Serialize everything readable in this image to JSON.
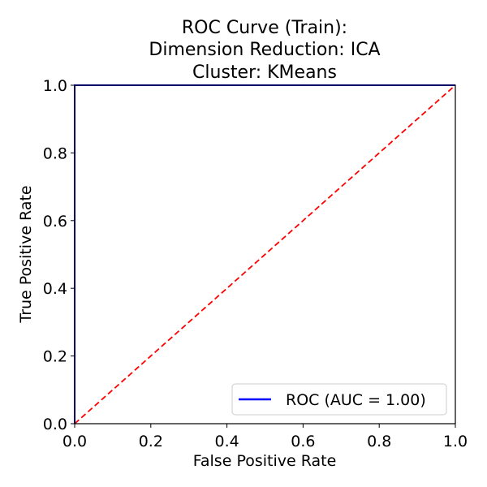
{
  "chart_data": {
    "type": "line",
    "title": [
      "ROC Curve (Train):",
      "Dimension Reduction: ICA",
      "Cluster: KMeans"
    ],
    "xlabel": "False Positive Rate",
    "ylabel": "True Positive Rate",
    "xlim": [
      0.0,
      1.0
    ],
    "ylim": [
      0.0,
      1.0
    ],
    "xticks": [
      "0.0",
      "0.2",
      "0.4",
      "0.6",
      "0.8",
      "1.0"
    ],
    "yticks": [
      "0.0",
      "0.2",
      "0.4",
      "0.6",
      "0.8",
      "1.0"
    ],
    "grid": false,
    "legend_position": "lower-right",
    "series": [
      {
        "name": "ROC (AUC = 1.00)",
        "x": [
          0.0,
          0.0,
          1.0
        ],
        "y": [
          0.0,
          1.0,
          1.0
        ],
        "color": "#0000ff",
        "style": "solid"
      },
      {
        "x": [
          0.0,
          1.0
        ],
        "y": [
          0.0,
          1.0
        ],
        "color": "#ff0000",
        "style": "dashed"
      }
    ]
  }
}
